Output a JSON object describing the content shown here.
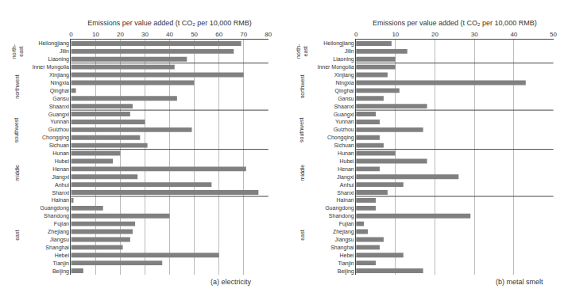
{
  "chart_data": [
    {
      "type": "bar",
      "orientation": "horizontal",
      "xlabel": "Emissions per value added (t CO₂ per 10,000 RMB)",
      "categories": [
        "Heilongjiang",
        "Jilin",
        "Liaoning",
        "Inner Mongolia",
        "Xinjiang",
        "Ningxia",
        "Qinghai",
        "Gansu",
        "Shaanxi",
        "Guangxi",
        "Yunnan",
        "Guizhou",
        "Chongqing",
        "Sichuan",
        "Hunan",
        "Hubei",
        "Henan",
        "Jiangxi",
        "Anhui",
        "Shanxi",
        "Hainan",
        "Guangdong",
        "Shandong",
        "Fujian",
        "Zhejiang",
        "Jiangsu",
        "Shanghai",
        "Hebei",
        "Tianjin",
        "Beijing"
      ],
      "values": [
        69,
        66,
        47,
        42,
        70,
        50,
        2,
        43,
        25,
        24,
        30,
        49,
        28,
        31,
        20,
        17,
        71,
        27,
        57,
        76,
        1,
        13,
        40,
        26,
        25,
        24,
        21,
        60,
        37,
        5
      ],
      "color": "#808080",
      "xlim": [
        0,
        80
      ],
      "xticks": [
        0,
        10,
        20,
        30,
        40,
        50,
        60,
        70,
        80
      ],
      "grid": true,
      "annotations": [
        "(a) electricity"
      ],
      "regions": [
        {
          "label": "north-\neast",
          "from": "Heilongjiang",
          "to": "Liaoning"
        },
        {
          "label": "northwest",
          "from": "Inner Mongolia",
          "to": "Shaanxi"
        },
        {
          "label": "southwest",
          "from": "Guangxi",
          "to": "Sichuan"
        },
        {
          "label": "middle",
          "from": "Hunan",
          "to": "Shanxi"
        },
        {
          "label": "east",
          "from": "Hainan",
          "to": "Beijing"
        }
      ]
    },
    {
      "type": "bar",
      "orientation": "horizontal",
      "xlabel": "Emissions per value added (t CO₂ per 10,000 RMB)",
      "categories": [
        "Heilongjiang",
        "Jilin",
        "Liaoning",
        "Inner Mongolia",
        "Xinjiang",
        "Ningxia",
        "Qinghai",
        "Gansu",
        "Shaanxi",
        "Guangxi",
        "Yunnan",
        "Guizhou",
        "Chongqing",
        "Sichuan",
        "Hunan",
        "Hubei",
        "Henan",
        "Jiangxi",
        "Anhui",
        "Shanxi",
        "Hainan",
        "Guangdong",
        "Shandong",
        "Fujian",
        "Zhejiang",
        "Jiangsu",
        "Shanghai",
        "Hebei",
        "Tianjin",
        "Beijing"
      ],
      "values": [
        9,
        13,
        10,
        10,
        8,
        43,
        11,
        7,
        18,
        5,
        6,
        17,
        6,
        7,
        10,
        18,
        6,
        26,
        12,
        8,
        5,
        5,
        29,
        2,
        3,
        7,
        6,
        12,
        5,
        17
      ],
      "color": "#808080",
      "xlim": [
        0,
        50
      ],
      "xticks": [
        0,
        10,
        20,
        30,
        40,
        50
      ],
      "grid": true,
      "annotations": [
        "(b) metal smelt"
      ],
      "regions": [
        {
          "label": "north-\neast",
          "from": "Heilongjiang",
          "to": "Liaoning"
        },
        {
          "label": "northwest",
          "from": "Inner Mongolia",
          "to": "Shaanxi"
        },
        {
          "label": "southwest",
          "from": "Guangxi",
          "to": "Sichuan"
        },
        {
          "label": "middle",
          "from": "Hunan",
          "to": "Shanxi"
        },
        {
          "label": "east",
          "from": "Hainan",
          "to": "Beijing"
        }
      ]
    }
  ]
}
